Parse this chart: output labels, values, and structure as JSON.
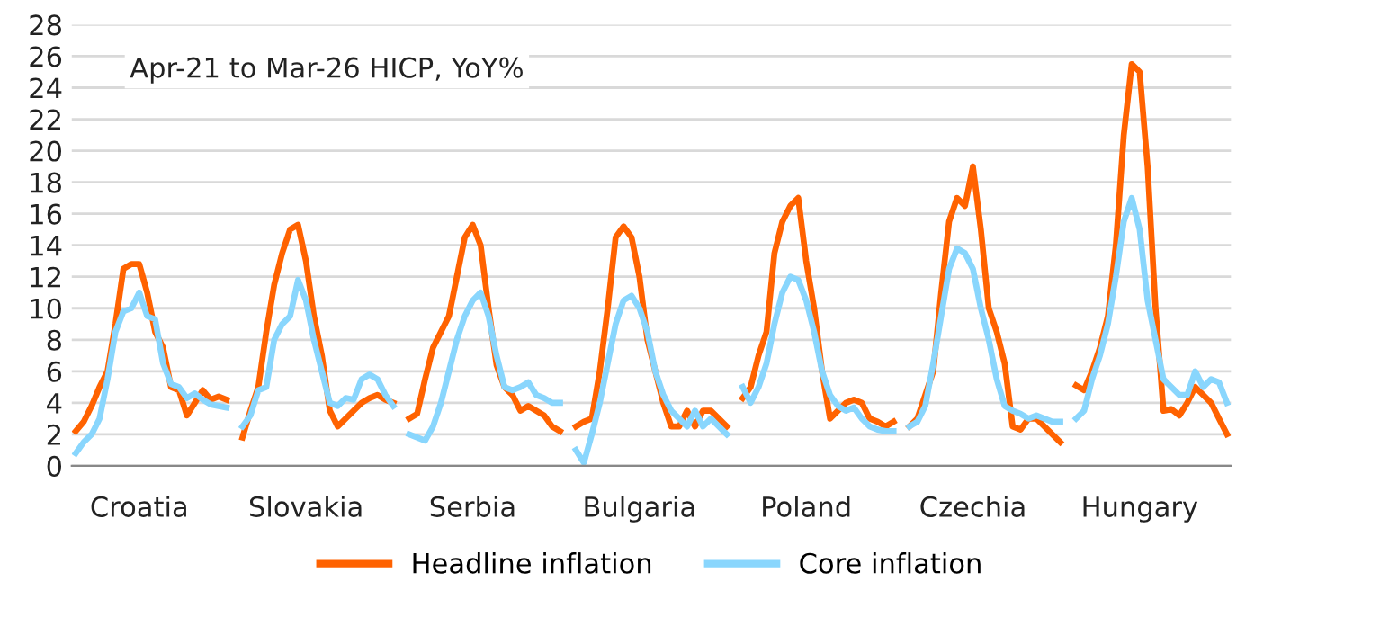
{
  "chart_data": {
    "type": "line",
    "categories": [
      null,
      null,
      null,
      null,
      null,
      null,
      null,
      null,
      "Croatia",
      null,
      null,
      null,
      null,
      null,
      null,
      null,
      null,
      null,
      null,
      null,
      null,
      null,
      null,
      null,
      null,
      null,
      null,
      null,
      null,
      "Slovakia",
      null,
      null,
      null,
      null,
      null,
      null,
      null,
      null,
      null,
      null,
      null,
      null,
      null,
      null,
      null,
      null,
      null,
      null,
      null,
      null,
      "Serbia",
      null,
      null,
      null,
      null,
      null,
      null,
      null,
      null,
      null,
      null,
      null,
      null,
      null,
      null,
      null,
      null,
      null,
      null,
      null,
      null,
      "Bulgaria",
      null,
      null,
      null,
      null,
      null,
      null,
      null,
      null,
      null,
      null,
      null,
      null,
      null,
      null,
      null,
      null,
      null,
      null,
      null,
      null,
      "Poland",
      null,
      null,
      null,
      null,
      null,
      null,
      null,
      null,
      null,
      null,
      null,
      null,
      null,
      null,
      null,
      null,
      null,
      null,
      null,
      null,
      "Czechia",
      null,
      null,
      null,
      null,
      null,
      null,
      null,
      null,
      null,
      null,
      null,
      null,
      null,
      null,
      null,
      null,
      null,
      null,
      null,
      null,
      "Hungary",
      null,
      null,
      null,
      null,
      null,
      null,
      null,
      null,
      null,
      null,
      null
    ],
    "series": [
      {
        "name": "Headline inflation",
        "color": "#ff6200",
        "values": [
          2.2,
          2.8,
          3.8,
          5.0,
          6.0,
          9.0,
          12.5,
          12.8,
          12.8,
          11.0,
          8.5,
          7.5,
          5.0,
          4.8,
          3.2,
          4.0,
          4.8,
          4.2,
          4.4,
          4.2,
          null,
          1.8,
          3.5,
          5.0,
          8.5,
          11.5,
          13.5,
          15.0,
          15.3,
          13.0,
          9.5,
          7.0,
          3.5,
          2.5,
          3.0,
          3.5,
          4.0,
          4.3,
          4.5,
          4.2,
          4.0,
          null,
          3.0,
          3.3,
          5.5,
          7.5,
          8.5,
          9.5,
          12.0,
          14.5,
          15.3,
          14.0,
          10.0,
          6.4,
          5.0,
          4.5,
          3.5,
          3.8,
          3.5,
          3.2,
          2.5,
          2.2,
          null,
          2.5,
          2.8,
          3.0,
          6.0,
          10.0,
          14.5,
          15.2,
          14.5,
          12.0,
          8.0,
          6.0,
          4.0,
          2.5,
          2.5,
          3.5,
          2.5,
          3.5,
          3.5,
          3.0,
          2.5,
          null,
          4.3,
          5.0,
          7.0,
          8.5,
          13.5,
          15.5,
          16.5,
          17.0,
          13.0,
          10.0,
          6.0,
          3.0,
          3.5,
          4.0,
          4.2,
          4.0,
          3.0,
          2.8,
          2.5,
          2.8,
          null,
          2.5,
          3.0,
          4.5,
          6.0,
          11.0,
          15.5,
          17.0,
          16.5,
          19.0,
          15.0,
          10.0,
          8.5,
          6.5,
          2.5,
          2.3,
          3.0,
          3.0,
          2.5,
          2.0,
          1.5,
          null,
          5.1,
          4.8,
          6.0,
          7.5,
          9.5,
          14.0,
          21.0,
          25.5,
          25.0,
          19.0,
          10.0,
          3.5,
          3.6,
          3.2,
          4.0,
          5.0,
          4.5,
          4.0,
          3.0,
          2.0
        ]
      },
      {
        "name": "Core inflation",
        "color": "#89d6fd",
        "values": [
          0.8,
          1.5,
          2.0,
          3.0,
          5.5,
          8.5,
          9.8,
          10.0,
          11.0,
          9.5,
          9.3,
          6.5,
          5.2,
          5.0,
          4.3,
          4.6,
          4.2,
          3.9,
          3.8,
          3.7,
          null,
          2.5,
          3.2,
          4.8,
          5.0,
          8.0,
          9.0,
          9.5,
          11.8,
          10.5,
          8.0,
          6.0,
          4.0,
          3.8,
          4.3,
          4.2,
          5.5,
          5.8,
          5.5,
          4.5,
          3.8,
          null,
          2.0,
          1.8,
          1.6,
          2.5,
          4.0,
          6.0,
          8.0,
          9.5,
          10.5,
          11.0,
          9.5,
          7.0,
          5.0,
          4.8,
          5.0,
          5.3,
          4.5,
          4.3,
          4.0,
          4.0,
          null,
          1.0,
          0.2,
          2.0,
          4.0,
          6.5,
          9.0,
          10.5,
          10.8,
          10.0,
          8.5,
          6.0,
          4.5,
          3.5,
          3.0,
          2.5,
          3.5,
          2.5,
          3.0,
          2.5,
          2.0,
          null,
          5.0,
          4.0,
          5.0,
          6.5,
          9.0,
          11.0,
          12.0,
          11.8,
          10.5,
          8.5,
          6.0,
          4.5,
          3.8,
          3.5,
          3.7,
          3.0,
          2.5,
          2.3,
          2.2,
          2.2,
          null,
          2.5,
          2.8,
          3.8,
          6.5,
          9.5,
          12.5,
          13.8,
          13.5,
          12.5,
          10.0,
          8.0,
          5.5,
          3.8,
          3.5,
          3.3,
          3.0,
          3.2,
          3.0,
          2.8,
          2.8,
          null,
          3.0,
          3.5,
          5.5,
          7.0,
          9.0,
          12.0,
          15.5,
          17.0,
          15.0,
          10.5,
          8.0,
          5.5,
          5.0,
          4.5,
          4.5,
          6.0,
          5.0,
          5.5,
          5.3,
          4.0
        ]
      }
    ],
    "ylim": [
      0,
      28
    ],
    "yticks": [
      0,
      2,
      4,
      6,
      8,
      10,
      12,
      14,
      16,
      18,
      20,
      22,
      24,
      26,
      28
    ],
    "grid": "y",
    "legend": "bottom",
    "marker": "none",
    "line_style": "solid",
    "annotations": [
      "Apr-21 to Mar-26 HICP, YoY%"
    ]
  }
}
